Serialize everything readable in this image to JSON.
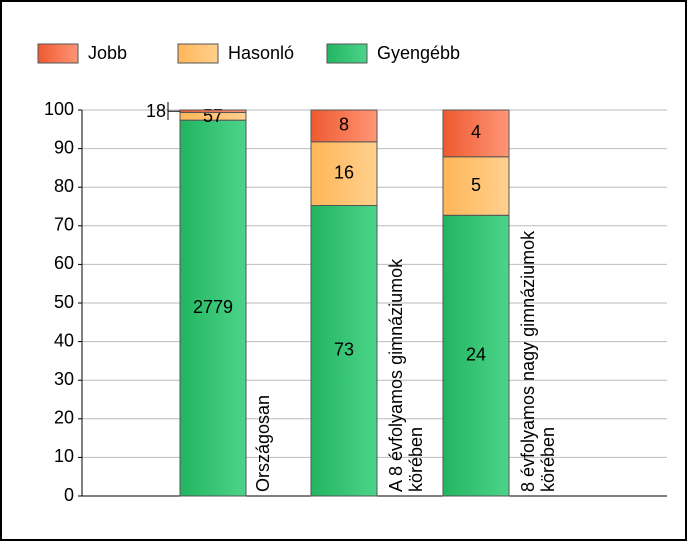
{
  "chart_data": {
    "type": "stacked_percent_bar",
    "categories": [
      [
        "Országosan"
      ],
      [
        "A 8 évfolyamos gimnáziumok",
        "körében"
      ],
      [
        "8 évfolyamos nagy gimnáziumok",
        "körében"
      ]
    ],
    "series": [
      {
        "name": "Gyengébb",
        "color": "#2cc06c",
        "values": [
          2779,
          73,
          24
        ]
      },
      {
        "name": "Hasonló",
        "color": "#ffbe6a",
        "values": [
          57,
          16,
          5
        ]
      },
      {
        "name": "Jobb",
        "color": "#f2643e",
        "values": [
          18,
          8,
          4
        ]
      }
    ],
    "ylim": [
      0,
      100
    ],
    "yticks": [
      0,
      10,
      20,
      30,
      40,
      50,
      60,
      70,
      80,
      90,
      100
    ],
    "grid": true
  }
}
